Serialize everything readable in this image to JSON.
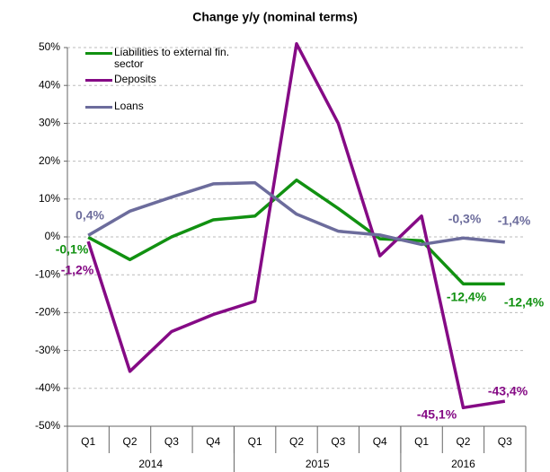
{
  "chart_data": {
    "type": "line",
    "title": "Change y/y (nominal terms)",
    "categories": [
      "Q1",
      "Q2",
      "Q3",
      "Q4",
      "Q1",
      "Q2",
      "Q3",
      "Q4",
      "Q1",
      "Q2",
      "Q3"
    ],
    "groups": [
      {
        "label": "2014",
        "count": 4
      },
      {
        "label": "2015",
        "count": 4
      },
      {
        "label": "2016",
        "count": 3
      }
    ],
    "series": [
      {
        "name": "Liabilities to external fin. sector",
        "color": "#119111",
        "values": [
          -0.1,
          -6,
          0,
          4.5,
          5.5,
          15,
          7.5,
          -0.5,
          -1,
          -12.4,
          -12.4
        ],
        "value_labels": [
          "-0,1%",
          null,
          null,
          null,
          null,
          null,
          null,
          null,
          null,
          "-12,4%",
          "-12,4%"
        ]
      },
      {
        "name": "Deposits",
        "color": "#850a85",
        "values": [
          -1.2,
          -35.5,
          -25,
          -20.5,
          -17,
          51,
          30,
          -5,
          5.5,
          -45.1,
          -43.4
        ],
        "value_labels": [
          "-1,2%",
          null,
          null,
          null,
          null,
          null,
          null,
          null,
          null,
          "-45,1%",
          "-43,4%"
        ]
      },
      {
        "name": "Loans",
        "color": "#6c6c9c",
        "values": [
          0.4,
          6.8,
          10.5,
          14,
          14.3,
          6,
          1.5,
          0.5,
          -2,
          -0.3,
          -1.4
        ],
        "value_labels": [
          "0,4%",
          null,
          null,
          null,
          null,
          null,
          null,
          null,
          null,
          "-0,3%",
          "-1,4%"
        ]
      }
    ],
    "ylim": [
      -50,
      50
    ],
    "yticks": [
      {
        "value": -50,
        "label": "-50%"
      },
      {
        "value": -40,
        "label": "-40%"
      },
      {
        "value": -30,
        "label": "-30%"
      },
      {
        "value": -20,
        "label": "-20%"
      },
      {
        "value": -10,
        "label": "-10%"
      },
      {
        "value": 0,
        "label": "0%"
      },
      {
        "value": 10,
        "label": "10%"
      },
      {
        "value": 20,
        "label": "20%"
      },
      {
        "value": 30,
        "label": "30%"
      },
      {
        "value": 40,
        "label": "40%"
      },
      {
        "value": 50,
        "label": "50%"
      }
    ],
    "grid": true,
    "legend": "top-left"
  }
}
